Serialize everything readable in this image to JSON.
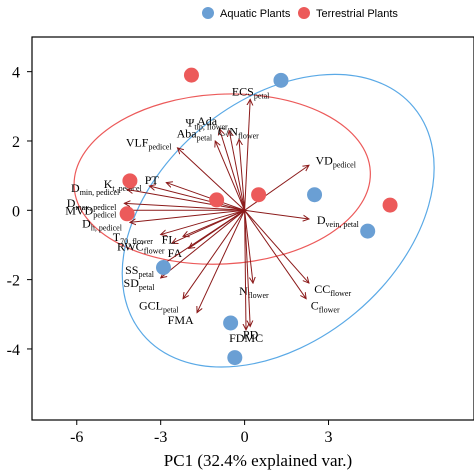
{
  "colors": {
    "aquatic": "#6a9fd4",
    "terrestrial": "#ec5a5a",
    "arrow": "#8b1a1a",
    "ellipse_aquatic": "#5aa9e6",
    "ellipse_terrestrial": "#ec5a5a"
  },
  "chart_data": {
    "type": "scatter",
    "subtype": "pca-biplot",
    "xlabel": "PC1 (32.4% explained var.)",
    "ylabel": "",
    "xlim": [
      -7.6,
      8.2
    ],
    "ylim": [
      -6.05,
      5.0
    ],
    "x_ticks": [
      -6,
      -3,
      0,
      3
    ],
    "y_ticks": [
      4,
      2,
      0,
      -2,
      -4
    ],
    "grid": false,
    "legend": {
      "position": "top-right",
      "entries": [
        "Aquatic Plants",
        "Terrestrial Plants"
      ]
    },
    "series": [
      {
        "name": "Aquatic Plants",
        "points": [
          [
            1.3,
            3.75
          ],
          [
            2.5,
            0.45
          ],
          [
            4.4,
            -0.6
          ],
          [
            -2.9,
            -1.65
          ],
          [
            -0.5,
            -3.25
          ],
          [
            -0.35,
            -4.25
          ]
        ]
      },
      {
        "name": "Terrestrial Plants",
        "points": [
          [
            -1.9,
            3.9
          ],
          [
            -4.1,
            0.85
          ],
          [
            -4.2,
            -0.1
          ],
          [
            -1.0,
            0.3
          ],
          [
            0.5,
            0.45
          ],
          [
            5.2,
            0.15
          ]
        ]
      }
    ],
    "ellipses": [
      {
        "group": "Terrestrial Plants",
        "cx": -0.8,
        "cy": 0.9,
        "rx": 5.3,
        "ry": 2.45,
        "angle_deg": -3
      },
      {
        "group": "Aquatic Plants",
        "cx": 1.2,
        "cy": -0.3,
        "rx": 4.3,
        "ry": 5.1,
        "angle_deg": 50
      }
    ],
    "origin": [
      0,
      0
    ],
    "vectors": [
      {
        "main": "ECS",
        "sub": "petal",
        "x": 0.2,
        "y": 3.2
      },
      {
        "main": "Ada",
        "sub": "",
        "x": -0.9,
        "y": 2.35
      },
      {
        "main": "Ψ",
        "sub": "tlp, flower",
        "x": -0.55,
        "y": 2.3
      },
      {
        "main": "Aba",
        "sub": "petal",
        "x": -1.05,
        "y": 2.0
      },
      {
        "main": "C/N",
        "sub": "flower",
        "x": -0.2,
        "y": 2.05
      },
      {
        "main": "VLF",
        "sub": "pedicel",
        "x": -2.4,
        "y": 1.8
      },
      {
        "main": "PT",
        "sub": "",
        "x": -2.8,
        "y": 0.8
      },
      {
        "main": "K",
        "sub": "t, pedicel",
        "x": -3.4,
        "y": 0.7
      },
      {
        "main": "D",
        "sub": "min, pedicel",
        "x": -4.2,
        "y": 0.6
      },
      {
        "main": "D",
        "sub": "max, pedicel",
        "x": -4.3,
        "y": 0.2
      },
      {
        "main": "MVD",
        "sub": "pedicel",
        "x": -4.3,
        "y": 0.0
      },
      {
        "main": "D",
        "sub": "h, pedicel",
        "x": -4.1,
        "y": -0.35
      },
      {
        "main": "T",
        "sub": "70, flower",
        "x": -3.0,
        "y": -0.7
      },
      {
        "main": "RWC",
        "sub": "flower",
        "x": -2.6,
        "y": -0.95
      },
      {
        "main": "FL",
        "sub": "",
        "x": -2.2,
        "y": -0.75
      },
      {
        "main": "FA",
        "sub": "",
        "x": -2.0,
        "y": -1.1
      },
      {
        "main": "VD",
        "sub": "pedicel",
        "x": 2.3,
        "y": 1.3
      },
      {
        "main": "D",
        "sub": "vein, petal",
        "x": 2.3,
        "y": -0.25
      },
      {
        "main": "SS",
        "sub": "petal",
        "x": -3.0,
        "y": -1.6
      },
      {
        "main": "SD",
        "sub": "petal",
        "x": -3.0,
        "y": -1.95
      },
      {
        "main": "GCL",
        "sub": "petal",
        "x": -2.2,
        "y": -2.55
      },
      {
        "main": "FMA",
        "sub": "",
        "x": -1.7,
        "y": -2.95
      },
      {
        "main": "N",
        "sub": "flower",
        "x": 0.3,
        "y": -2.1
      },
      {
        "main": "CC",
        "sub": "flower",
        "x": 2.3,
        "y": -2.1
      },
      {
        "main": "C",
        "sub": "flower",
        "x": 2.2,
        "y": -2.55
      },
      {
        "main": "PD",
        "sub": "",
        "x": 0.2,
        "y": -3.35
      },
      {
        "main": "FDMC",
        "sub": "",
        "x": 0.05,
        "y": -3.45
      }
    ]
  }
}
